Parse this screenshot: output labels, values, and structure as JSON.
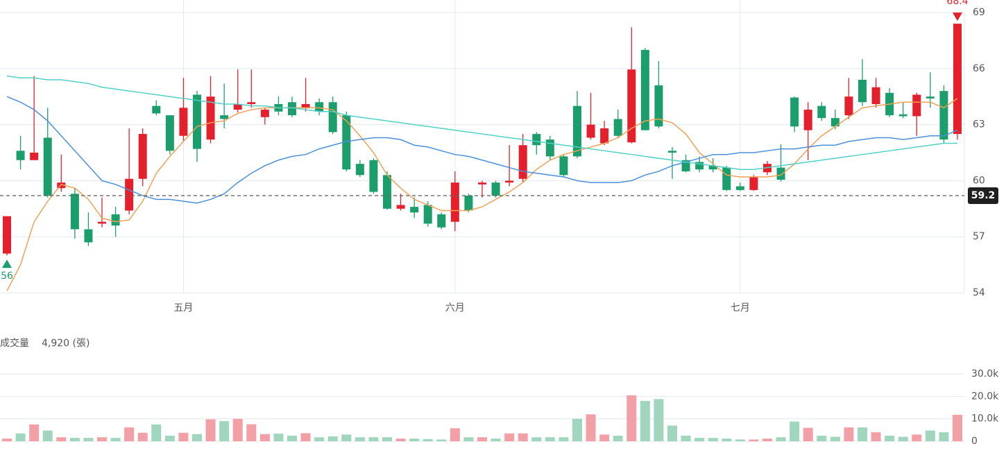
{
  "chart_data": [
    {
      "type": "candlestick",
      "categories": [
        null,
        null,
        null,
        null,
        null,
        null,
        null,
        null,
        null,
        null,
        null,
        null,
        null,
        "五月",
        null,
        null,
        null,
        null,
        null,
        null,
        null,
        null,
        null,
        null,
        null,
        null,
        null,
        null,
        null,
        null,
        null,
        null,
        null,
        "六月",
        null,
        null,
        null,
        null,
        null,
        null,
        null,
        null,
        null,
        null,
        null,
        null,
        null,
        null,
        null,
        null,
        null,
        null,
        null,
        null,
        "七月",
        null,
        null,
        null,
        null,
        null,
        null,
        null,
        null,
        null,
        null,
        null,
        null,
        null,
        null,
        null,
        null
      ],
      "open": [
        56.1,
        61.6,
        61.1,
        62.3,
        59.6,
        59.3,
        57.4,
        57.7,
        58.2,
        58.4,
        60.1,
        64.0,
        63.5,
        62.4,
        64.6,
        62.2,
        63.5,
        63.8,
        64.1,
        63.4,
        64.1,
        64.2,
        63.9,
        64.2,
        64.2,
        63.5,
        60.9,
        61.1,
        60.3,
        58.5,
        58.6,
        58.7,
        58.2,
        57.8,
        59.2,
        59.8,
        59.9,
        59.9,
        60.1,
        62.5,
        62.2,
        61.3,
        64.0,
        62.3,
        62.0,
        63.3,
        62.05,
        67.0,
        65.1,
        61.6,
        61.1,
        61.0,
        60.8,
        60.7,
        59.7,
        59.5,
        60.45,
        60.7,
        64.45,
        62.7,
        64.0,
        63.35,
        63.5,
        65.4,
        64.1,
        64.7,
        63.55,
        63.45,
        64.5,
        64.8,
        62.5
      ],
      "high": [
        58.1,
        62.4,
        65.6,
        63.9,
        61.4,
        59.6,
        58.3,
        59.1,
        58.6,
        62.8,
        62.8,
        64.3,
        63.5,
        65.5,
        64.8,
        65.6,
        65.2,
        65.95,
        65.95,
        63.9,
        64.5,
        64.5,
        65.5,
        64.4,
        64.5,
        63.7,
        61.1,
        61.2,
        60.5,
        59.3,
        59.1,
        58.9,
        58.3,
        60.5,
        59.3,
        60.0,
        60.0,
        61.9,
        62.5,
        62.6,
        62.4,
        61.4,
        64.8,
        64.7,
        63.2,
        63.8,
        68.2,
        67.1,
        66.4,
        61.8,
        61.4,
        61.3,
        61.2,
        60.8,
        59.9,
        60.3,
        61.05,
        61.95,
        64.5,
        64.2,
        64.2,
        63.8,
        65.5,
        66.5,
        65.5,
        64.95,
        64.2,
        64.7,
        65.8,
        65.1,
        68.4
      ],
      "low": [
        56,
        60.6,
        61.1,
        59.1,
        59.4,
        56.9,
        56.5,
        57.5,
        57.0,
        58.2,
        59.7,
        63.5,
        61.4,
        62.1,
        61.0,
        62.0,
        62.8,
        63.65,
        63.9,
        63.0,
        63.5,
        63.4,
        63.7,
        63.5,
        62.5,
        60.5,
        60.2,
        59.3,
        58.45,
        58.4,
        58.0,
        57.55,
        57.4,
        57.3,
        58.3,
        59.1,
        59.1,
        59.7,
        59.9,
        61.4,
        61.1,
        60.2,
        61.2,
        62.2,
        61.9,
        62.3,
        62.0,
        62.7,
        62.8,
        60.1,
        60.45,
        60.45,
        60.45,
        59.45,
        59.45,
        59.45,
        60.3,
        59.95,
        62.6,
        61.1,
        63.2,
        62.75,
        63.3,
        64.0,
        63.9,
        63.4,
        63.35,
        62.4,
        63.9,
        62.0,
        62.2
      ],
      "close": [
        58.1,
        61.1,
        61.5,
        59.2,
        59.9,
        57.4,
        56.7,
        57.8,
        57.6,
        60.1,
        62.5,
        63.6,
        61.6,
        63.9,
        61.7,
        64.5,
        63.3,
        64.1,
        64.2,
        63.8,
        63.7,
        63.5,
        64.1,
        63.7,
        62.6,
        60.6,
        60.3,
        59.4,
        58.5,
        58.7,
        58.3,
        57.7,
        57.5,
        59.9,
        58.4,
        59.9,
        59.2,
        60.0,
        61.9,
        61.9,
        61.3,
        60.3,
        61.3,
        63.0,
        62.8,
        62.4,
        65.95,
        62.7,
        62.9,
        61.5,
        60.5,
        60.6,
        60.6,
        59.5,
        59.5,
        60.2,
        60.9,
        60.05,
        62.9,
        63.8,
        63.35,
        62.9,
        64.5,
        64.2,
        65.0,
        63.5,
        63.45,
        64.6,
        64.4,
        62.2,
        68.4
      ],
      "lines": [
        {
          "color": "#f0a055",
          "values": [
            54.1,
            55.5,
            57.8,
            58.9,
            59.8,
            59.6,
            59.0,
            58.0,
            57.8,
            57.9,
            58.9,
            60.4,
            61.3,
            62.1,
            62.9,
            63.1,
            63.2,
            63.6,
            63.8,
            63.9,
            63.9,
            63.9,
            63.9,
            63.9,
            63.8,
            63.2,
            62.4,
            61.5,
            60.3,
            59.6,
            59.0,
            58.7,
            58.4,
            58.4,
            58.4,
            58.6,
            59.0,
            59.4,
            59.9,
            60.6,
            61.1,
            61.4,
            61.6,
            61.8,
            62.0,
            62.3,
            62.8,
            63.2,
            63.3,
            63.1,
            62.5,
            61.5,
            60.9,
            60.3,
            60.2,
            60.2,
            60.2,
            60.3,
            60.9,
            61.7,
            62.4,
            62.9,
            63.4,
            63.9,
            64.0,
            64.1,
            64.2,
            64.2,
            64.2,
            63.9,
            64.4
          ]
        },
        {
          "color": "#4a90d9",
          "values": [
            64.5,
            64.2,
            63.8,
            63.2,
            62.4,
            61.6,
            60.8,
            60.0,
            59.8,
            59.5,
            59.2,
            59.0,
            59.0,
            58.9,
            58.8,
            59.0,
            59.3,
            59.9,
            60.4,
            60.8,
            61.1,
            61.3,
            61.4,
            61.7,
            61.9,
            62.1,
            62.2,
            62.3,
            62.3,
            62.2,
            61.9,
            61.8,
            61.6,
            61.4,
            61.3,
            61.1,
            60.9,
            60.7,
            60.5,
            60.4,
            60.3,
            60.2,
            60.0,
            59.9,
            59.9,
            59.9,
            60.0,
            60.3,
            60.5,
            60.8,
            61.0,
            61.2,
            61.4,
            61.4,
            61.5,
            61.5,
            61.6,
            61.7,
            61.7,
            61.8,
            61.9,
            61.9,
            62.1,
            62.2,
            62.3,
            62.3,
            62.2,
            62.3,
            62.4,
            62.4,
            62.7
          ]
        },
        {
          "color": "#4fd1c5",
          "values": [
            65.6,
            65.5,
            65.5,
            65.4,
            65.4,
            65.3,
            65.2,
            65.0,
            64.9,
            64.8,
            64.7,
            64.6,
            64.5,
            64.4,
            64.3,
            64.2,
            64.1,
            64.1,
            64.0,
            64.0,
            63.9,
            63.9,
            63.8,
            63.7,
            63.7,
            63.5,
            63.4,
            63.3,
            63.2,
            63.1,
            63.0,
            62.9,
            62.8,
            62.7,
            62.6,
            62.5,
            62.4,
            62.3,
            62.2,
            62.1,
            62.0,
            61.9,
            61.8,
            61.7,
            61.6,
            61.5,
            61.4,
            61.3,
            61.2,
            61.1,
            61.0,
            60.9,
            60.8,
            60.7,
            60.6,
            60.6,
            60.7,
            60.8,
            60.9,
            61.0,
            61.1,
            61.2,
            61.3,
            61.4,
            61.5,
            61.6,
            61.7,
            61.8,
            61.9,
            62.0,
            62.0
          ]
        }
      ],
      "up_color": "#e3202c",
      "down_color": "#1b9e6c",
      "ylim": [
        54,
        69
      ],
      "yticks": [
        54,
        57,
        60,
        63,
        66,
        69
      ],
      "grid": true,
      "reference_line": 59.2,
      "max_marker": 68.4,
      "min_marker": 56
    },
    {
      "type": "bar",
      "title": "成交量",
      "subtitle": "4,920 (張)",
      "values": [
        1200,
        3500,
        7500,
        4800,
        1800,
        1500,
        1500,
        1800,
        1500,
        6200,
        3800,
        7500,
        2500,
        3800,
        3200,
        9800,
        9000,
        10000,
        7600,
        3200,
        3400,
        2500,
        3600,
        1800,
        2200,
        3000,
        1800,
        1800,
        1800,
        1200,
        1200,
        1000,
        800,
        5800,
        1800,
        1800,
        1200,
        3500,
        3500,
        1800,
        1800,
        1800,
        10000,
        12000,
        3000,
        2500,
        20500,
        18000,
        18800,
        7000,
        2500,
        1500,
        1500,
        1200,
        800,
        800,
        1200,
        1800,
        8800,
        6000,
        2500,
        2000,
        6200,
        6200,
        4000,
        2500,
        2000,
        3000,
        4800,
        4000,
        11800
      ],
      "up_color": "#f2a0a5",
      "down_color": "#9fd6bd",
      "ylim": [
        0,
        30000
      ],
      "yticks": [
        0,
        {
          "value": 10000,
          "label": "10.0k"
        },
        {
          "value": 20000,
          "label": "20.0k"
        },
        {
          "value": 30000,
          "label": "30.0k"
        }
      ],
      "grid": true
    }
  ]
}
